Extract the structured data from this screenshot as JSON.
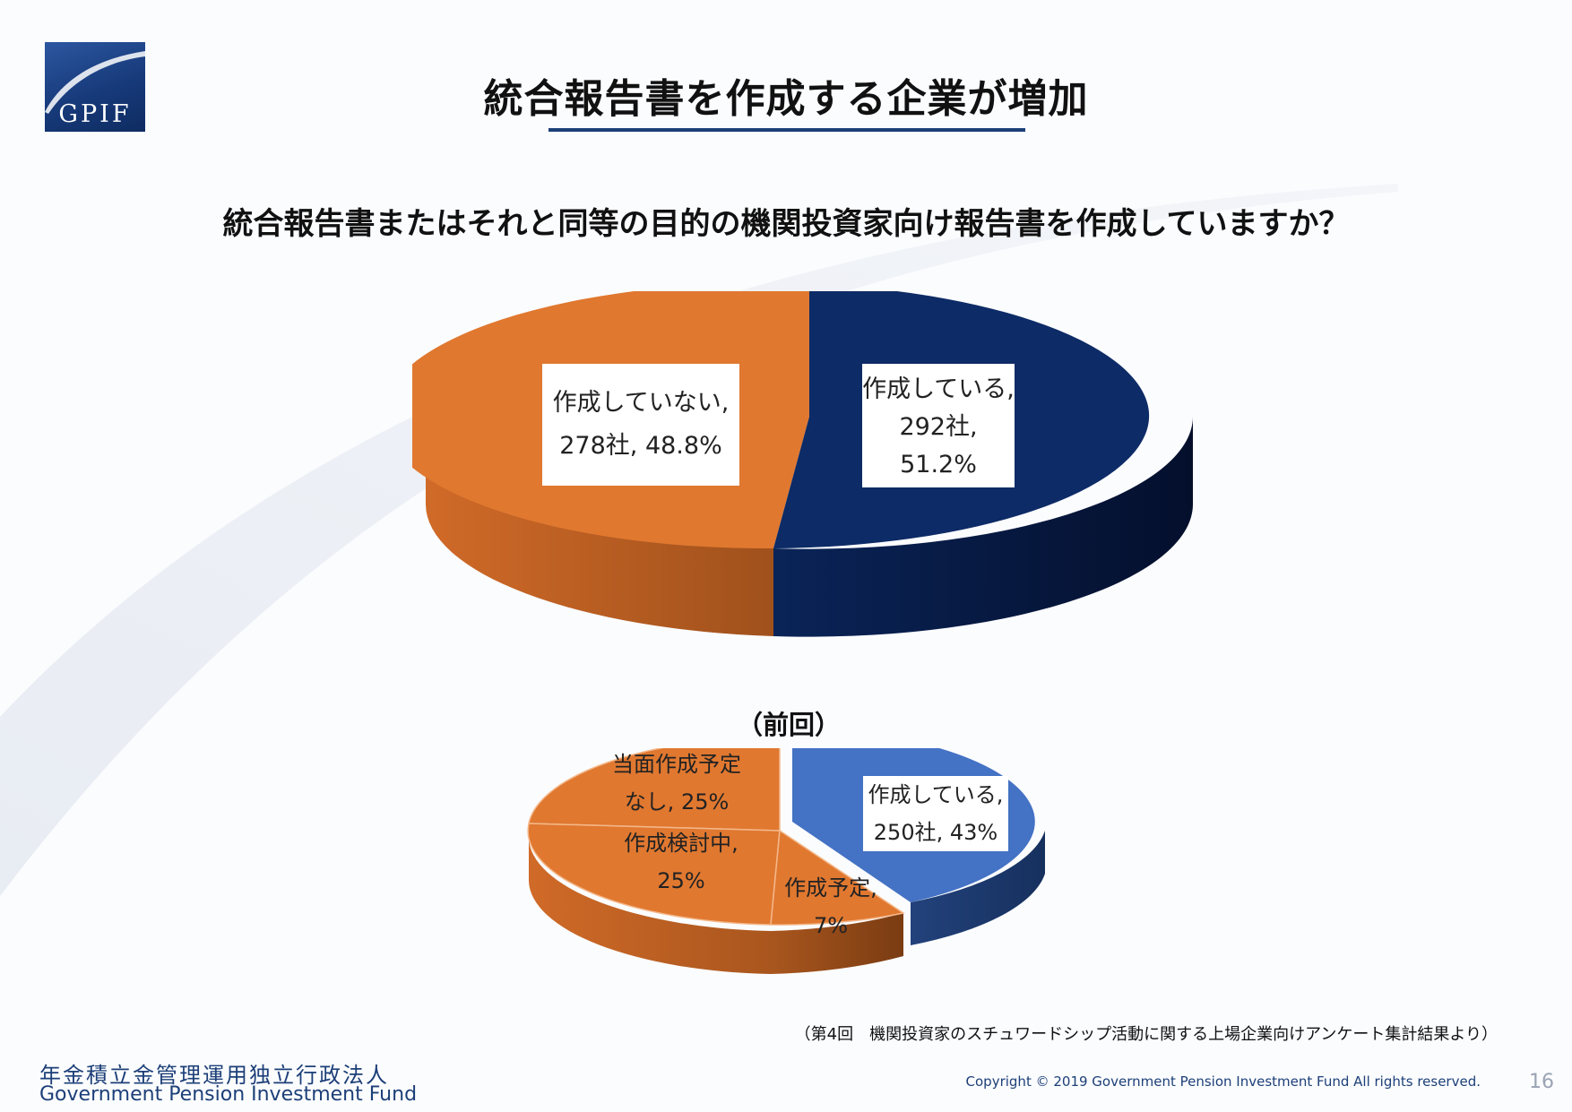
{
  "header": {
    "logo_text": "GPIF",
    "title": "統合報告書を作成する企業が増加",
    "question": "統合報告書またはそれと同等の目的の機関投資家向け報告書を作成していますか？"
  },
  "chart_data": [
    {
      "type": "pie",
      "title": "",
      "categories": [
        "作成している",
        "作成していない"
      ],
      "values": [
        51.2,
        48.8
      ],
      "counts": [
        292,
        278
      ],
      "colors": [
        "#0d2b66",
        "#e07830"
      ],
      "labels": [
        {
          "lines": [
            "作成している,",
            "292社,",
            "51.2%"
          ]
        },
        {
          "lines": [
            "作成していない,",
            "278社, 48.8%"
          ]
        }
      ]
    },
    {
      "type": "pie",
      "title": "（前回）",
      "categories": [
        "作成している",
        "作成予定",
        "作成検討中",
        "当面作成予定なし"
      ],
      "values": [
        43,
        7,
        25,
        25
      ],
      "counts": [
        250,
        null,
        null,
        null
      ],
      "colors": [
        "#4472c4",
        "#e07830",
        "#e07830",
        "#e07830"
      ],
      "labels": [
        {
          "lines": [
            "作成している,",
            "250社, 43%"
          ]
        },
        {
          "lines": [
            "作成予定,",
            "7%"
          ]
        },
        {
          "lines": [
            "作成検討中,",
            "25%"
          ]
        },
        {
          "lines": [
            "当面作成予定",
            "なし, 25%"
          ]
        }
      ]
    }
  ],
  "footer": {
    "source": "（第4回　機関投資家のスチュワードシップ活動に関する上場企業向けアンケート集計結果より）",
    "org_jp": "年金積立金管理運用独立行政法人",
    "org_en": "Government Pension Investment Fund",
    "copyright": "Copyright © 2019 Government Pension Investment Fund All rights reserved.",
    "page_number": "16"
  }
}
